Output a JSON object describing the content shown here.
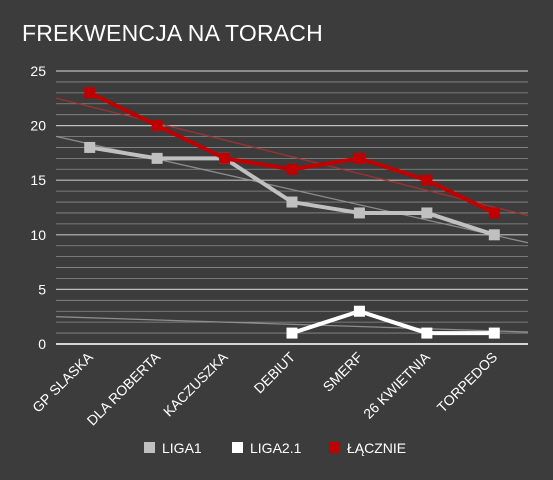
{
  "chart_data": {
    "type": "line",
    "title": "FREKWENCJA NA TORACH",
    "xlabel": "",
    "ylabel": "",
    "categories": [
      "GP SLASKA",
      "DLA ROBERTA",
      "KACZUSZKA",
      "DEBIUT",
      "SMERF",
      "26 KWIETNIA",
      "TORPEDOS"
    ],
    "ylim": [
      0,
      25
    ],
    "yticks": [
      0,
      5,
      10,
      15,
      20,
      25
    ],
    "grid": true,
    "legend_position": "bottom",
    "trendlines": true,
    "series": [
      {
        "name": "LIGA1",
        "color": "#c0c0c0",
        "values": [
          18,
          17,
          17,
          13,
          12,
          12,
          10
        ]
      },
      {
        "name": "LIGA2.1",
        "color": "#ffffff",
        "values": [
          null,
          null,
          null,
          1,
          3,
          1,
          1
        ]
      },
      {
        "name": "ŁĄCZNIE",
        "color": "#c00000",
        "values": [
          23,
          20,
          17,
          16,
          17,
          15,
          12
        ]
      }
    ]
  }
}
